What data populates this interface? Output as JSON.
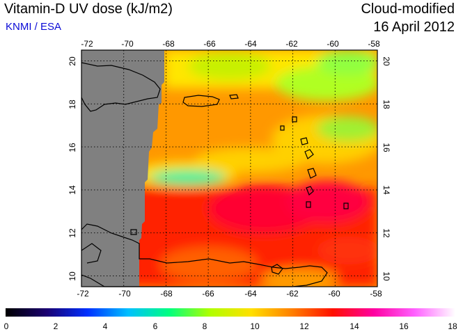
{
  "header": {
    "title": "Vitamin-D UV dose (kJ/m2)",
    "credit": "KNMI / ESA",
    "mode": "Cloud-modified",
    "date": "16 April 2012"
  },
  "map": {
    "lon_range": [
      -72,
      -58
    ],
    "lat_range": [
      9.5,
      20.5
    ],
    "lon_ticks": [
      "-72",
      "-70",
      "-68",
      "-66",
      "-64",
      "-62",
      "-60",
      "-58"
    ],
    "lat_ticks": [
      "10",
      "12",
      "14",
      "16",
      "18",
      "20"
    ],
    "no_data_color": "#808080",
    "grid": true
  },
  "colorbar": {
    "min": 0,
    "max": 18,
    "tick_labels": [
      "0",
      "2",
      "4",
      "6",
      "8",
      "10",
      "12",
      "14",
      "16",
      "18"
    ],
    "stops": [
      "#000000",
      "#1a0070",
      "#0030ff",
      "#00c0ff",
      "#00ff80",
      "#b0ff00",
      "#ffe000",
      "#ff8000",
      "#ff1000",
      "#ff00a0",
      "#ff60ff",
      "#ffffff"
    ]
  }
}
